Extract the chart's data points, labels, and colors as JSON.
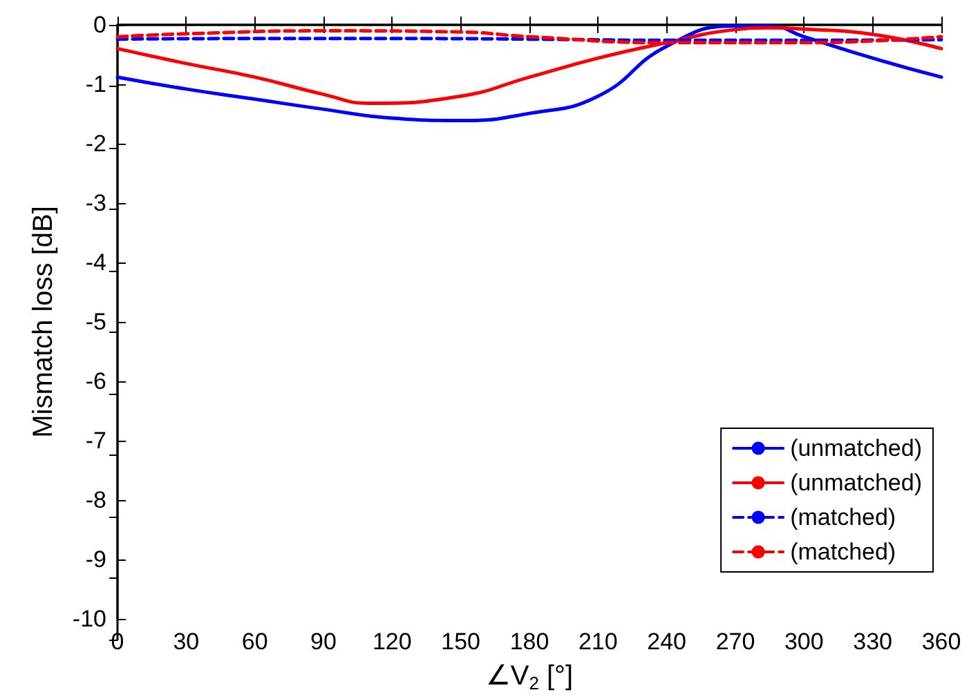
{
  "chart_data": {
    "type": "line",
    "xlabel": "∠V$_{2}$ [°]",
    "ylabel": "Mismatch loss [dB]",
    "xlim": [
      0,
      360
    ],
    "xticks": [
      0,
      30,
      60,
      90,
      120,
      150,
      180,
      210,
      240,
      270,
      300,
      330,
      360
    ],
    "ylim": [
      -10,
      0
    ],
    "yticks": [
      -10,
      -9,
      -8,
      -7,
      -6,
      -5,
      -4,
      -3,
      -2,
      -1,
      0
    ],
    "grid": false,
    "legend": "bottom right",
    "marker": "none",
    "series": [
      {
        "name": "(unmatched)",
        "color": "#0000ff",
        "line_style": "solid",
        "x": [
          0,
          30,
          60,
          90,
          120,
          150,
          180,
          210,
          240,
          270,
          285,
          300,
          330,
          360
        ],
        "values": [
          -0.88,
          -1.08,
          -1.25,
          -1.42,
          -1.57,
          -1.61,
          -1.49,
          -1.2,
          -0.36,
          -0.02,
          -0.02,
          -0.2,
          -0.56,
          -0.88
        ]
      },
      {
        "name": "(unmatched)",
        "color": "#ff0000",
        "line_style": "solid",
        "x": [
          0,
          30,
          60,
          90,
          110,
          150,
          180,
          210,
          240,
          270,
          285,
          300,
          330,
          360
        ],
        "values": [
          -0.4,
          -0.65,
          -0.88,
          -1.17,
          -1.32,
          -1.2,
          -0.88,
          -0.56,
          -0.3,
          -0.08,
          -0.05,
          -0.07,
          -0.16,
          -0.4
        ]
      },
      {
        "name": "(matched)",
        "color": "#0000ff",
        "line_style": "dashed",
        "x": [
          0,
          60,
          120,
          180,
          240,
          300,
          360
        ],
        "values": [
          -0.24,
          -0.23,
          -0.23,
          -0.24,
          -0.26,
          -0.26,
          -0.25
        ]
      },
      {
        "name": "(matched)",
        "color": "#ff0000",
        "line_style": "dashed",
        "x": [
          0,
          30,
          90,
          150,
          180,
          240,
          300,
          330,
          360
        ],
        "values": [
          -0.2,
          -0.15,
          -0.1,
          -0.12,
          -0.2,
          -0.3,
          -0.3,
          -0.27,
          -0.2
        ]
      }
    ]
  }
}
